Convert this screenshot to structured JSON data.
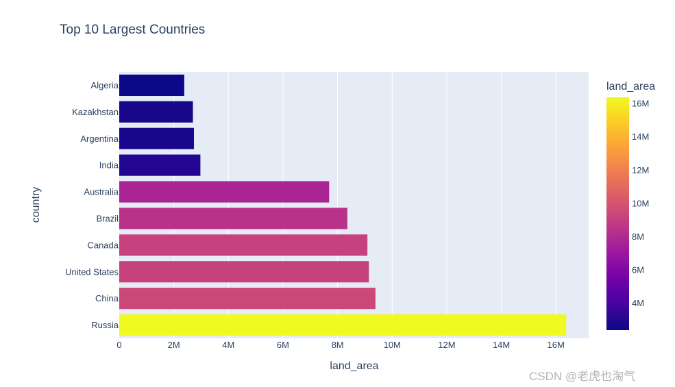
{
  "watermark": "CSDN @老虎也淘气",
  "chart_data": {
    "type": "bar",
    "orientation": "horizontal",
    "title": "Top 10 Largest Countries",
    "xlabel": "land_area",
    "ylabel": "country",
    "xlim": [
      0,
      17200000
    ],
    "x_ticks": [
      0,
      2000000,
      4000000,
      6000000,
      8000000,
      10000000,
      12000000,
      14000000,
      16000000
    ],
    "x_tick_labels": [
      "0",
      "2M",
      "4M",
      "6M",
      "8M",
      "10M",
      "12M",
      "14M",
      "16M"
    ],
    "categories": [
      "Algeria",
      "Kazakhstan",
      "Argentina",
      "India",
      "Australia",
      "Brazil",
      "Canada",
      "United States",
      "China",
      "Russia"
    ],
    "values": [
      2381741,
      2699700,
      2736690,
      2973190,
      7692024,
      8358140,
      9093507,
      9147420,
      9388211,
      16376870
    ],
    "grid": true,
    "colorbar": {
      "title": "land_area",
      "colorscale": "plasma",
      "range": [
        2381741,
        16376870
      ],
      "ticks": [
        4000000,
        6000000,
        8000000,
        10000000,
        12000000,
        14000000,
        16000000
      ],
      "tick_labels": [
        "4M",
        "6M",
        "8M",
        "10M",
        "12M",
        "14M",
        "16M"
      ]
    },
    "colors": {
      "plot_bg": "#e5ecf6",
      "grid": "#ffffff",
      "text": "#2a3f5f"
    }
  }
}
